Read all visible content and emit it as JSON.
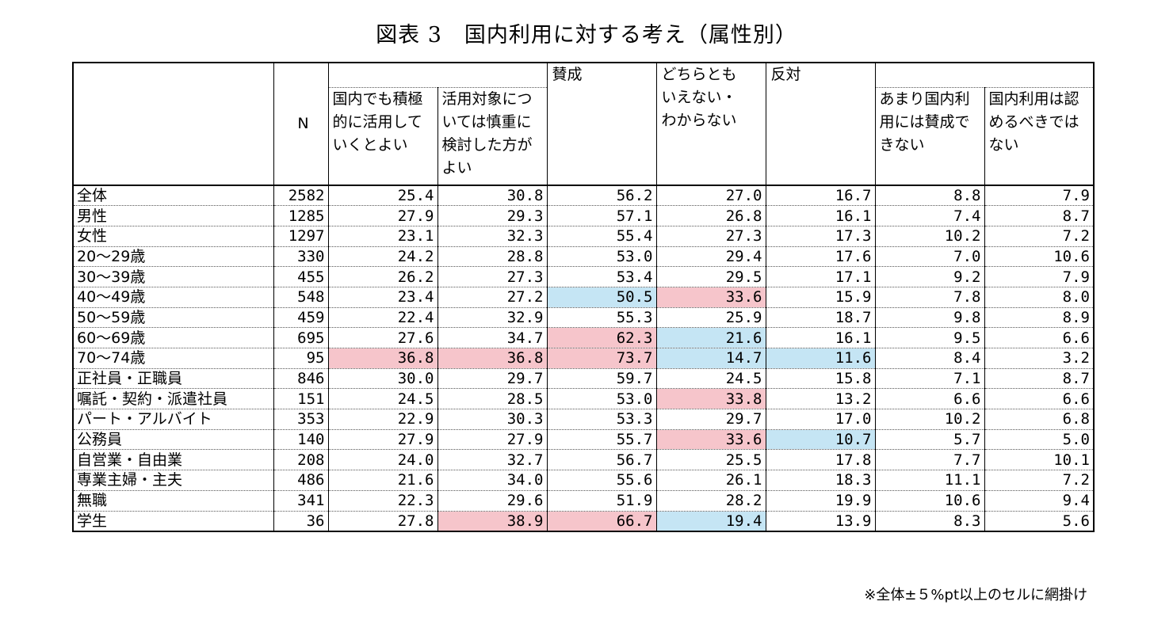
{
  "title": "図表 3　国内利用に対する考え（属性別）",
  "header": {
    "n_label": "N",
    "group_agree": "賛成",
    "group_neutral": "どちらとも\nいえない・\nわからない",
    "group_oppose": "反対",
    "sub_active": "国内でも積極的に活用していくとよい",
    "sub_careful": "活用対象については慎重に検討した方がよい",
    "sub_not_much": "あまり国内利用には賛成できない",
    "sub_should_not": "国内利用は認めるべきではない"
  },
  "colors": {
    "highlight_high": "#f6c5cb",
    "highlight_low": "#c5e5f4"
  },
  "rows": [
    {
      "label": "全体",
      "n": "2582",
      "values": [
        "25.4",
        "30.8",
        "56.2",
        "27.0",
        "16.7",
        "8.8",
        "7.9"
      ],
      "hl": [
        "",
        "",
        "",
        "",
        "",
        "",
        ""
      ]
    },
    {
      "label": "男性",
      "n": "1285",
      "values": [
        "27.9",
        "29.3",
        "57.1",
        "26.8",
        "16.1",
        "7.4",
        "8.7"
      ],
      "hl": [
        "",
        "",
        "",
        "",
        "",
        "",
        ""
      ]
    },
    {
      "label": "女性",
      "n": "1297",
      "values": [
        "23.1",
        "32.3",
        "55.4",
        "27.3",
        "17.3",
        "10.2",
        "7.2"
      ],
      "hl": [
        "",
        "",
        "",
        "",
        "",
        "",
        ""
      ]
    },
    {
      "label": "20～29歳",
      "n": "330",
      "values": [
        "24.2",
        "28.8",
        "53.0",
        "29.4",
        "17.6",
        "7.0",
        "10.6"
      ],
      "hl": [
        "",
        "",
        "",
        "",
        "",
        "",
        ""
      ]
    },
    {
      "label": "30～39歳",
      "n": "455",
      "values": [
        "26.2",
        "27.3",
        "53.4",
        "29.5",
        "17.1",
        "9.2",
        "7.9"
      ],
      "hl": [
        "",
        "",
        "",
        "",
        "",
        "",
        ""
      ]
    },
    {
      "label": "40～49歳",
      "n": "548",
      "values": [
        "23.4",
        "27.2",
        "50.5",
        "33.6",
        "15.9",
        "7.8",
        "8.0"
      ],
      "hl": [
        "",
        "",
        "blue",
        "pink",
        "",
        "",
        ""
      ]
    },
    {
      "label": "50～59歳",
      "n": "459",
      "values": [
        "22.4",
        "32.9",
        "55.3",
        "25.9",
        "18.7",
        "9.8",
        "8.9"
      ],
      "hl": [
        "",
        "",
        "",
        "",
        "",
        "",
        ""
      ]
    },
    {
      "label": "60～69歳",
      "n": "695",
      "values": [
        "27.6",
        "34.7",
        "62.3",
        "21.6",
        "16.1",
        "9.5",
        "6.6"
      ],
      "hl": [
        "",
        "",
        "pink",
        "blue",
        "",
        "",
        ""
      ]
    },
    {
      "label": "70～74歳",
      "n": "95",
      "values": [
        "36.8",
        "36.8",
        "73.7",
        "14.7",
        "11.6",
        "8.4",
        "3.2"
      ],
      "hl": [
        "pink",
        "pink",
        "pink",
        "blue",
        "blue",
        "",
        ""
      ]
    },
    {
      "label": "正社員・正職員",
      "n": "846",
      "values": [
        "30.0",
        "29.7",
        "59.7",
        "24.5",
        "15.8",
        "7.1",
        "8.7"
      ],
      "hl": [
        "",
        "",
        "",
        "",
        "",
        "",
        ""
      ]
    },
    {
      "label": "嘱託・契約・派遣社員",
      "n": "151",
      "values": [
        "24.5",
        "28.5",
        "53.0",
        "33.8",
        "13.2",
        "6.6",
        "6.6"
      ],
      "hl": [
        "",
        "",
        "",
        "pink",
        "",
        "",
        ""
      ]
    },
    {
      "label": "パート・アルバイト",
      "n": "353",
      "values": [
        "22.9",
        "30.3",
        "53.3",
        "29.7",
        "17.0",
        "10.2",
        "6.8"
      ],
      "hl": [
        "",
        "",
        "",
        "",
        "",
        "",
        ""
      ]
    },
    {
      "label": "公務員",
      "n": "140",
      "values": [
        "27.9",
        "27.9",
        "55.7",
        "33.6",
        "10.7",
        "5.7",
        "5.0"
      ],
      "hl": [
        "",
        "",
        "",
        "pink",
        "blue",
        "",
        ""
      ]
    },
    {
      "label": "自営業・自由業",
      "n": "208",
      "values": [
        "24.0",
        "32.7",
        "56.7",
        "25.5",
        "17.8",
        "7.7",
        "10.1"
      ],
      "hl": [
        "",
        "",
        "",
        "",
        "",
        "",
        ""
      ]
    },
    {
      "label": "専業主婦・主夫",
      "n": "486",
      "values": [
        "21.6",
        "34.0",
        "55.6",
        "26.1",
        "18.3",
        "11.1",
        "7.2"
      ],
      "hl": [
        "",
        "",
        "",
        "",
        "",
        "",
        ""
      ]
    },
    {
      "label": "無職",
      "n": "341",
      "values": [
        "22.3",
        "29.6",
        "51.9",
        "28.2",
        "19.9",
        "10.6",
        "9.4"
      ],
      "hl": [
        "",
        "",
        "",
        "",
        "",
        "",
        ""
      ]
    },
    {
      "label": "学生",
      "n": "36",
      "values": [
        "27.8",
        "38.9",
        "66.7",
        "19.4",
        "13.9",
        "8.3",
        "5.6"
      ],
      "hl": [
        "",
        "pink",
        "pink",
        "blue",
        "",
        "",
        ""
      ]
    }
  ],
  "note": "※全体±５%pt以上のセルに網掛け"
}
